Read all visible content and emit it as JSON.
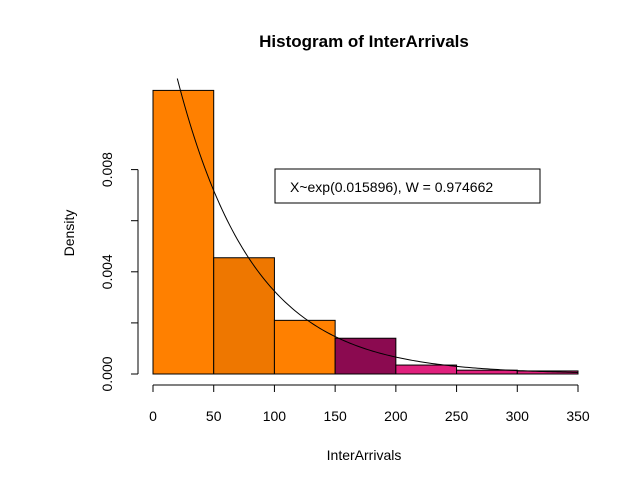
{
  "chart_data": {
    "type": "bar",
    "title": "Histogram of InterArrivals",
    "xlabel": "InterArrivals",
    "ylabel": "Density",
    "xlim": [
      0,
      350
    ],
    "ylim": [
      0,
      0.01
    ],
    "x_ticks": [
      0,
      50,
      100,
      150,
      200,
      250,
      300,
      350
    ],
    "y_ticks": [
      0.0,
      0.004,
      0.008
    ],
    "y_tick_labels": [
      "0.000",
      "0.004",
      "0.008"
    ],
    "bins": [
      {
        "x0": 0,
        "x1": 50,
        "density": 0.0111,
        "color": "#FF8000"
      },
      {
        "x0": 50,
        "x1": 100,
        "density": 0.00455,
        "color": "#EE7700"
      },
      {
        "x0": 100,
        "x1": 150,
        "density": 0.0021,
        "color": "#FF8000"
      },
      {
        "x0": 150,
        "x1": 200,
        "density": 0.0014,
        "color": "#8B0A50"
      },
      {
        "x0": 200,
        "x1": 250,
        "density": 0.00035,
        "color": "#E0207D"
      },
      {
        "x0": 250,
        "x1": 300,
        "density": 0.00015,
        "color": "#E0207D"
      },
      {
        "x0": 300,
        "x1": 350,
        "density": 0.00012,
        "color": "#E0207D"
      }
    ],
    "fit_curve": {
      "distribution": "exponential",
      "rate": 0.015896,
      "x_from": 20,
      "x_to": 350
    },
    "legend": {
      "text": "X~exp(0.015896), W = 0.974662",
      "placement": "top-right"
    }
  }
}
